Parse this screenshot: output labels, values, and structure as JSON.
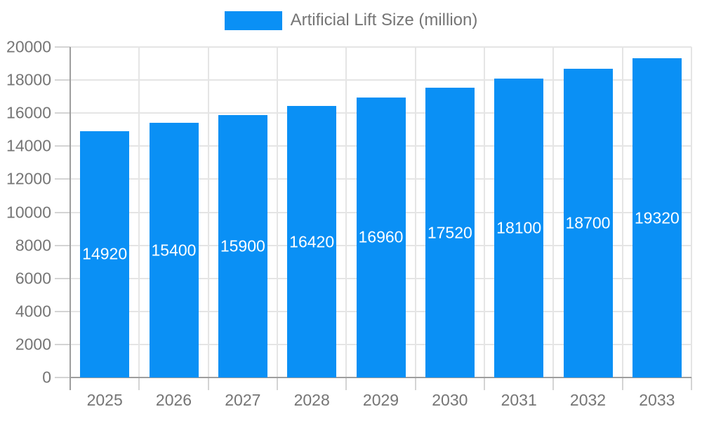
{
  "chart_data": {
    "type": "bar",
    "title": "",
    "legend": {
      "label": "Artificial Lift Size (million)",
      "position": "top-center"
    },
    "categories": [
      "2025",
      "2026",
      "2027",
      "2028",
      "2029",
      "2030",
      "2031",
      "2032",
      "2033"
    ],
    "series": [
      {
        "name": "Artificial Lift Size (million)",
        "values": [
          14920,
          15400,
          15900,
          16420,
          16960,
          17520,
          18100,
          18700,
          19320
        ]
      }
    ],
    "xlabel": "",
    "ylabel": "",
    "ylim": [
      0,
      20000
    ],
    "yticks": [
      0,
      2000,
      4000,
      6000,
      8000,
      10000,
      12000,
      14000,
      16000,
      18000,
      20000
    ],
    "grid": true,
    "bar_value_labels_visible": true,
    "colors": {
      "bar": "#0A90F5",
      "bar_label": "#FFFFFF",
      "axis_text": "#757575",
      "axis_line": "#9E9E9E",
      "grid_line": "#E5E5E5",
      "tick_line": "#D4D4D4",
      "background": "#FFFFFF"
    }
  }
}
